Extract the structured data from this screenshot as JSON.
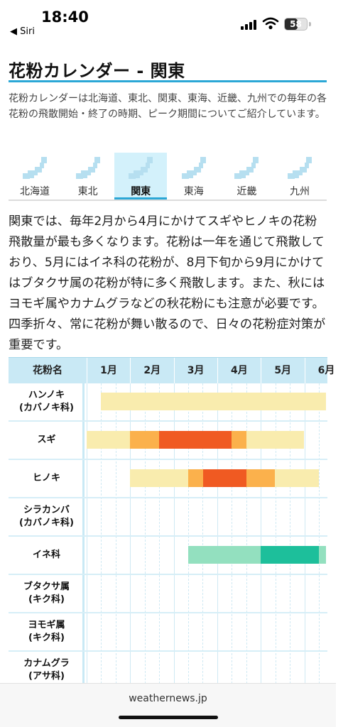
{
  "status": {
    "time": "18:40",
    "back_app": "◀ Siri",
    "battery": "58",
    "battery_level": 0.58
  },
  "page": {
    "title": "花粉カレンダー - 関東",
    "intro": "花粉カレンダーは北海道、東北、関東、東海、近畿、九州での毎年の各花粉の飛散開始・終了の時期、ピーク期間についてご紹介しています。",
    "description": "関東では、毎年2月から4月にかけてスギやヒノキの花粉飛散量が最も多くなります。花粉は一年を通じて飛散しており、5月にはイネ科の花粉が、8月下旬から9月にかけてはブタクサ属の花粉が特に多く飛散します。また、秋にはヨモギ属やカナムグラなどの秋花粉にも注意が必要です。四季折々、常に花粉が舞い散るので、日々の花粉症対策が重要です。"
  },
  "regions": [
    {
      "label": "北海道",
      "active": false
    },
    {
      "label": "東北",
      "active": false
    },
    {
      "label": "関東",
      "active": true
    },
    {
      "label": "東海",
      "active": false
    },
    {
      "label": "近畿",
      "active": false
    },
    {
      "label": "九州",
      "active": false
    }
  ],
  "table": {
    "name_header": "花粉名",
    "months": [
      "1月",
      "2月",
      "3月",
      "4月",
      "5月",
      "6月"
    ],
    "rows": [
      {
        "name": "ハンノキ",
        "sub": "(カバノキ科)",
        "segments": [
          {
            "start": 1.33,
            "end": 6.5,
            "level": "low"
          }
        ]
      },
      {
        "name": "スギ",
        "sub": "",
        "segments": [
          {
            "start": 1.0,
            "end": 2.0,
            "level": "low"
          },
          {
            "start": 2.0,
            "end": 2.67,
            "level": "mid"
          },
          {
            "start": 2.67,
            "end": 4.33,
            "level": "peak"
          },
          {
            "start": 4.33,
            "end": 4.67,
            "level": "mid"
          },
          {
            "start": 4.67,
            "end": 6.0,
            "level": "low"
          }
        ]
      },
      {
        "name": "ヒノキ",
        "sub": "",
        "segments": [
          {
            "start": 2.0,
            "end": 3.33,
            "level": "low"
          },
          {
            "start": 3.33,
            "end": 3.67,
            "level": "mid"
          },
          {
            "start": 3.67,
            "end": 4.67,
            "level": "peak"
          },
          {
            "start": 4.67,
            "end": 5.33,
            "level": "mid"
          },
          {
            "start": 5.33,
            "end": 6.33,
            "level": "low"
          }
        ]
      },
      {
        "name": "シラカンバ",
        "sub": "(カバノキ科)",
        "segments": []
      },
      {
        "name": "イネ科",
        "sub": "",
        "segments": [
          {
            "start": 3.33,
            "end": 5.0,
            "level": "grass_low"
          },
          {
            "start": 5.0,
            "end": 6.33,
            "level": "grass_peak"
          },
          {
            "start": 6.33,
            "end": 6.5,
            "level": "grass_low"
          }
        ]
      },
      {
        "name": "ブタクサ属",
        "sub": "(キク科)",
        "segments": []
      },
      {
        "name": "ヨモギ属",
        "sub": "(キク科)",
        "segments": []
      },
      {
        "name": "カナムグラ",
        "sub": "(アサ科)",
        "segments": []
      }
    ]
  },
  "colors": {
    "accent": "#2ba7d6",
    "low": "#f9ecae",
    "mid": "#fbb14c",
    "peak": "#f05a22",
    "grass_low": "#93e0bf",
    "grass_peak": "#1dbf9b"
  },
  "footer": {
    "url": "weathernews.jp"
  }
}
